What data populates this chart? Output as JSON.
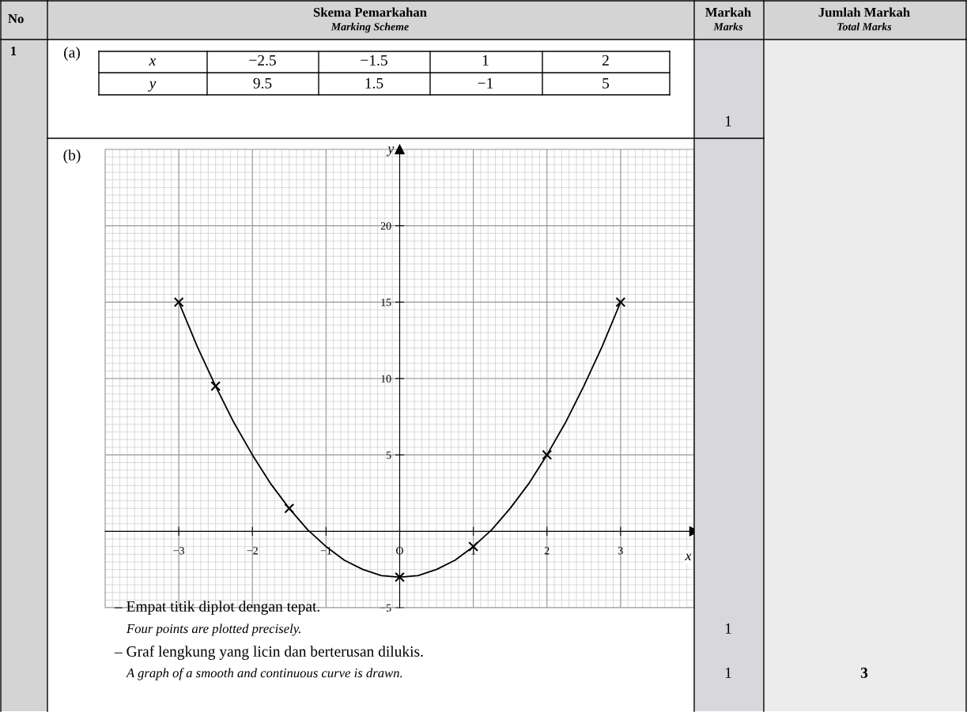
{
  "chart_data": {
    "type": "line",
    "xlabel": "x",
    "ylabel": "y",
    "xlim": [
      -4,
      4
    ],
    "ylim": [
      -5,
      25
    ],
    "xticks": [
      {
        "value": -3,
        "label": "−3"
      },
      {
        "value": -2,
        "label": "−2"
      },
      {
        "value": -1,
        "label": "−1"
      },
      {
        "value": 0,
        "label": "O"
      },
      {
        "value": 1,
        "label": "1"
      },
      {
        "value": 2,
        "label": "2"
      },
      {
        "value": 3,
        "label": "3"
      }
    ],
    "yticks": [
      {
        "value": -5,
        "label": "−5"
      },
      5,
      10,
      15,
      20
    ],
    "grid": true,
    "series": [
      {
        "color": "#000000",
        "marker": "none",
        "line_style": "solid",
        "x": [
          -3,
          -2.75,
          -2.5,
          -2.25,
          -2,
          -1.75,
          -1.5,
          -1.25,
          -1,
          -0.75,
          -0.5,
          -0.25,
          0,
          0.25,
          0.5,
          0.75,
          1,
          1.25,
          1.5,
          1.75,
          2,
          2.25,
          2.5,
          2.75,
          3
        ],
        "values": [
          15,
          12.1,
          9.5,
          7.1,
          5,
          3.1,
          1.5,
          0.1,
          -1,
          -1.9,
          -2.5,
          -2.9,
          -3,
          -2.9,
          -2.5,
          -1.9,
          -1,
          0.1,
          1.5,
          3.1,
          5,
          7.1,
          9.5,
          12.1,
          15
        ]
      },
      {
        "type": "scatter",
        "color": "#000000",
        "marker": "cross",
        "x": [
          -3,
          -2.5,
          -1.5,
          0,
          1,
          2,
          3
        ],
        "values": [
          15,
          9.5,
          1.5,
          -3,
          -1,
          5,
          15
        ]
      }
    ],
    "annotations": [
      "No",
      "Skema Pemarkahan",
      "Marking Scheme",
      "Markah",
      "Marks",
      "Jumlah Markah",
      "Total Marks",
      "1",
      "(a)",
      "x",
      "−2.5",
      "−1.5",
      "1",
      "2",
      "y",
      "9.5",
      "1.5",
      "−1",
      "5",
      "1",
      "(b)",
      "– Empat titik diplot dengan tepat.",
      "Four points are plotted precisely.",
      "1",
      "– Graf lengkung yang licin dan berterusan dilukis.",
      "A graph of a smooth and continuous curve is drawn.",
      "1",
      "3"
    ]
  }
}
